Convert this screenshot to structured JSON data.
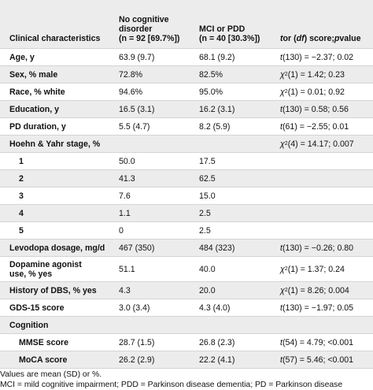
{
  "header": {
    "col1": "Clinical characteristics",
    "col2_line1": "No cognitive",
    "col2_line2": "disorder",
    "col2_line3": "(n = 92 [69.7%])",
    "col3_line1": "MCI or PDD",
    "col3_line2": "(n = 40 [30.3%])",
    "col4": "t or (df) score; p value"
  },
  "rows": [
    {
      "label": "Age, y",
      "nocog": "63.9 (9.7)",
      "mci": "68.1 (9.2)",
      "stat": "t (130) = −2.37; 0.02"
    },
    {
      "label": "Sex, % male",
      "nocog": "72.8%",
      "mci": "82.5%",
      "stat": "χ2 (1) = 1.42; 0.23"
    },
    {
      "label": "Race, % white",
      "nocog": "94.6%",
      "mci": "95.0%",
      "stat": "χ2 (1) = 0.01; 0.92"
    },
    {
      "label": "Education, y",
      "nocog": "16.5 (3.1)",
      "mci": "16.2 (3.1)",
      "stat": "t (130) = 0.58; 0.56"
    },
    {
      "label": "PD duration, y",
      "nocog": "5.5 (4.7)",
      "mci": "8.2 (5.9)",
      "stat": "t (61) = −2.55; 0.01"
    },
    {
      "label": "Hoehn & Yahr stage, %",
      "nocog": "",
      "mci": "",
      "stat": "χ2 (4) = 14.17; 0.007"
    },
    {
      "label": "1",
      "nocog": "50.0",
      "mci": "17.5",
      "stat": ""
    },
    {
      "label": "2",
      "nocog": "41.3",
      "mci": "62.5",
      "stat": ""
    },
    {
      "label": "3",
      "nocog": "7.6",
      "mci": "15.0",
      "stat": ""
    },
    {
      "label": "4",
      "nocog": "1.1",
      "mci": "2.5",
      "stat": ""
    },
    {
      "label": "5",
      "nocog": "0",
      "mci": "2.5",
      "stat": ""
    },
    {
      "label": "Levodopa dosage, mg/d",
      "nocog": "467 (350)",
      "mci": "484 (323)",
      "stat": "t (130) = −0.26; 0.80"
    },
    {
      "label_line1": "Dopamine agonist",
      "label_line2": "use, % yes",
      "nocog": "51.1",
      "mci": "40.0",
      "stat": "χ2 (1) = 1.37; 0.24"
    },
    {
      "label": "History of DBS, % yes",
      "nocog": "4.3",
      "mci": "20.0",
      "stat": "χ2 (1) = 8.26; 0.004"
    },
    {
      "label": "GDS-15 score",
      "nocog": "3.0 (3.4)",
      "mci": "4.3 (4.0)",
      "stat": "t (130) = −1.97; 0.05"
    },
    {
      "label": "Cognition",
      "nocog": "",
      "mci": "",
      "stat": ""
    },
    {
      "label": "MMSE score",
      "nocog": "28.7 (1.5)",
      "mci": "26.8 (2.3)",
      "stat": "t (54) = 4.79; <0.001"
    },
    {
      "label": "MoCA score",
      "nocog": "26.2 (2.9)",
      "mci": "22.2 (4.1)",
      "stat": "t (57) = 5.46; <0.001"
    }
  ],
  "footnote": "Values are mean (SD) or %.",
  "footnote2": "MCI = mild cognitive impairment; PDD = Parkinson disease dementia; PD = Parkinson disease"
}
